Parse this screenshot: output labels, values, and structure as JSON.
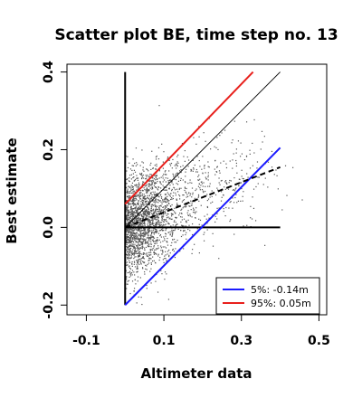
{
  "chart_data": {
    "type": "scatter",
    "title": "Scatter plot BE, time step no. 13",
    "xlabel": "Altimeter data",
    "ylabel": "Best estimate",
    "xlim": [
      -0.15,
      0.52
    ],
    "ylim": [
      -0.225,
      0.42
    ],
    "xticks": [
      -0.1,
      0.1,
      0.3,
      0.5
    ],
    "xtick_labels": [
      "-0.1",
      "0.1",
      "0.3",
      "0.5"
    ],
    "yticks": [
      -0.2,
      0.0,
      0.2,
      0.4
    ],
    "ytick_labels": [
      "-0.2",
      "0.0",
      "0.2",
      "0.4"
    ],
    "grid": false,
    "legend_position": "bottom-right",
    "legend": [
      {
        "label": "5%: -0.14m",
        "color": "#1a1aff"
      },
      {
        "label": "95%:  0.05m",
        "color": "#e8201c"
      }
    ],
    "point_color": "#555555",
    "scatter_cloud": {
      "x_range": [
        0.0,
        0.47
      ],
      "y_range": [
        -0.2,
        0.41
      ],
      "center": [
        0.03,
        0.0
      ],
      "approx_points": 2500
    },
    "reference_lines": [
      {
        "name": "vertical axis line",
        "color": "#000000",
        "style": "solid",
        "points": [
          [
            0.0,
            -0.2
          ],
          [
            0.0,
            0.4
          ]
        ]
      },
      {
        "name": "horizontal zero line",
        "color": "#000000",
        "style": "solid",
        "points": [
          [
            0.0,
            0.0
          ],
          [
            0.4,
            0.0
          ]
        ]
      },
      {
        "name": "1:1 line",
        "color": "#000000",
        "style": "solid-thin",
        "points": [
          [
            0.0,
            0.0
          ],
          [
            0.4,
            0.4
          ]
        ]
      },
      {
        "name": "5% line",
        "color": "#1a1aff",
        "style": "solid",
        "points": [
          [
            0.0,
            -0.2
          ],
          [
            0.4,
            0.205
          ]
        ]
      },
      {
        "name": "95% line",
        "color": "#e8201c",
        "style": "solid",
        "points": [
          [
            0.0,
            0.06
          ],
          [
            0.33,
            0.4
          ]
        ]
      },
      {
        "name": "fit line",
        "color": "#000000",
        "style": "dashed",
        "points": [
          [
            0.0,
            0.0
          ],
          [
            0.4,
            0.155
          ]
        ]
      }
    ]
  }
}
